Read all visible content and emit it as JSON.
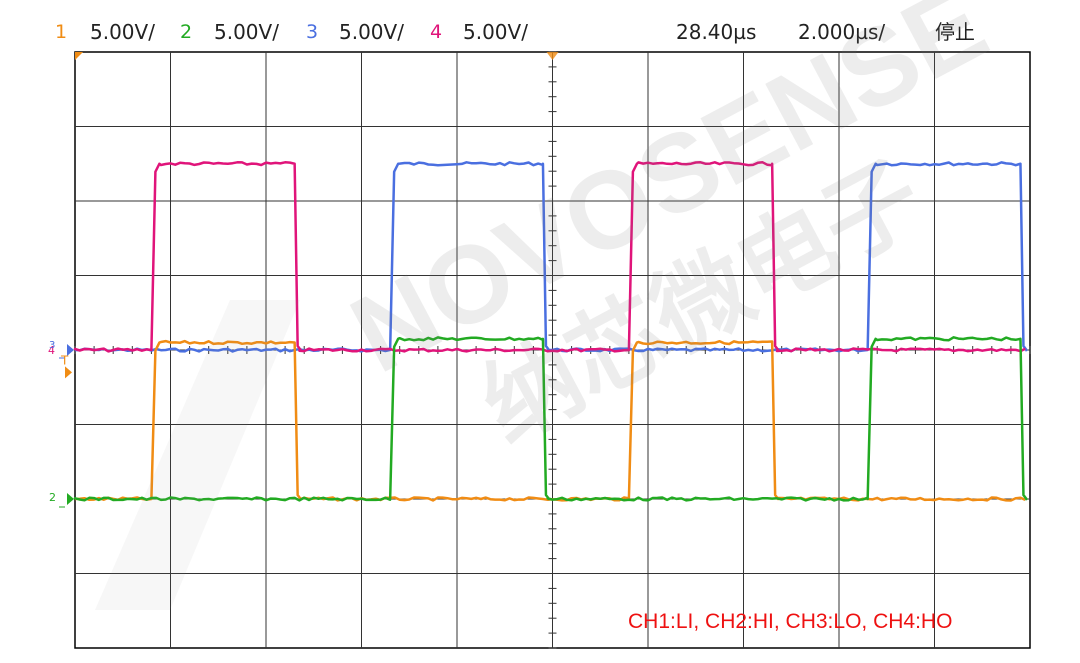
{
  "header": {
    "ch1": {
      "num": "1",
      "scale": "5.00V/",
      "color": "#f08c14"
    },
    "ch2": {
      "num": "2",
      "scale": "5.00V/",
      "color": "#22aa22"
    },
    "ch3": {
      "num": "3",
      "scale": "5.00V/",
      "color": "#4a6fe0"
    },
    "ch4": {
      "num": "4",
      "scale": "5.00V/",
      "color": "#e0147a"
    },
    "time_position": "28.40µs",
    "time_scale": "2.000µs/",
    "run_state": "停止"
  },
  "chart_data": {
    "type": "line",
    "x": {
      "unit": "div",
      "range": [
        0,
        10
      ]
    },
    "y": {
      "unit": "div",
      "range": [
        -4,
        4
      ]
    },
    "grid": true,
    "series": [
      {
        "channel": "3",
        "color": "#4a6fe0",
        "low": 0,
        "high": 2.5,
        "pulses": [
          [
            3.3,
            4.9
          ],
          [
            8.3,
            9.9
          ]
        ]
      },
      {
        "channel": "4",
        "color": "#e0147a",
        "low": 0,
        "high": 2.5,
        "pulses": [
          [
            0.8,
            2.3
          ],
          [
            5.8,
            7.3
          ]
        ]
      },
      {
        "channel": "1",
        "color": "#f08c14",
        "low": -2.0,
        "high": 0.1,
        "pulses": [
          [
            0.8,
            2.3
          ],
          [
            5.8,
            7.3
          ]
        ]
      },
      {
        "channel": "2",
        "color": "#22aa22",
        "low": -2.0,
        "high": 0.15,
        "pulses": [
          [
            3.3,
            4.9
          ],
          [
            8.3,
            9.9
          ]
        ]
      }
    ],
    "annotation": "CH1:LI, CH2:HI, CH3:LO, CH4:HO"
  },
  "watermark": {
    "text_en": "NOVOSENSE",
    "text_cn": "纳芯微电子"
  }
}
